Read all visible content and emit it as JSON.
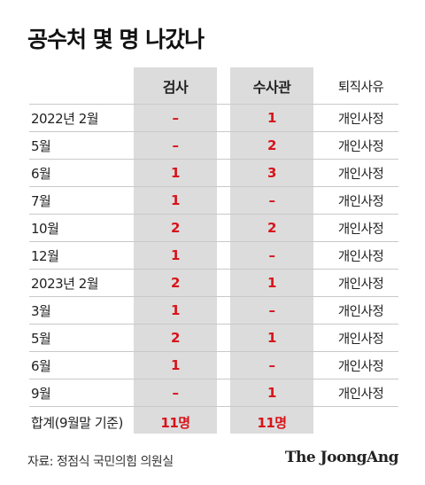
{
  "title": "공수처 몇 명 나갔나",
  "headers": {
    "col1": "검사",
    "col2": "수사관",
    "reason": "퇴직사유"
  },
  "rows": [
    {
      "period": "2022년 2월",
      "prosecutor": "–",
      "investigator": "1",
      "reason": "개인사정"
    },
    {
      "period": "5월",
      "prosecutor": "–",
      "investigator": "2",
      "reason": "개인사정"
    },
    {
      "period": "6월",
      "prosecutor": "1",
      "investigator": "3",
      "reason": "개인사정"
    },
    {
      "period": "7월",
      "prosecutor": "1",
      "investigator": "–",
      "reason": "개인사정"
    },
    {
      "period": "10월",
      "prosecutor": "2",
      "investigator": "2",
      "reason": "개인사정"
    },
    {
      "period": "12월",
      "prosecutor": "1",
      "investigator": "–",
      "reason": "개인사정"
    },
    {
      "period": "2023년 2월",
      "prosecutor": "2",
      "investigator": "1",
      "reason": "개인사정"
    },
    {
      "period": "3월",
      "prosecutor": "1",
      "investigator": "–",
      "reason": "개인사정"
    },
    {
      "period": "5월",
      "prosecutor": "2",
      "investigator": "1",
      "reason": "개인사정"
    },
    {
      "period": "6월",
      "prosecutor": "1",
      "investigator": "–",
      "reason": "개인사정"
    },
    {
      "period": "9월",
      "prosecutor": "–",
      "investigator": "1",
      "reason": "개인사정"
    }
  ],
  "total": {
    "label": "합계(9월말 기준)",
    "prosecutor": "11명",
    "investigator": "11명"
  },
  "source": "자료: 정점식 국민의힘 의원실",
  "brand": "The JoongAng",
  "colors": {
    "accent": "#d7141a",
    "column_bg": "#dcdcdc"
  }
}
